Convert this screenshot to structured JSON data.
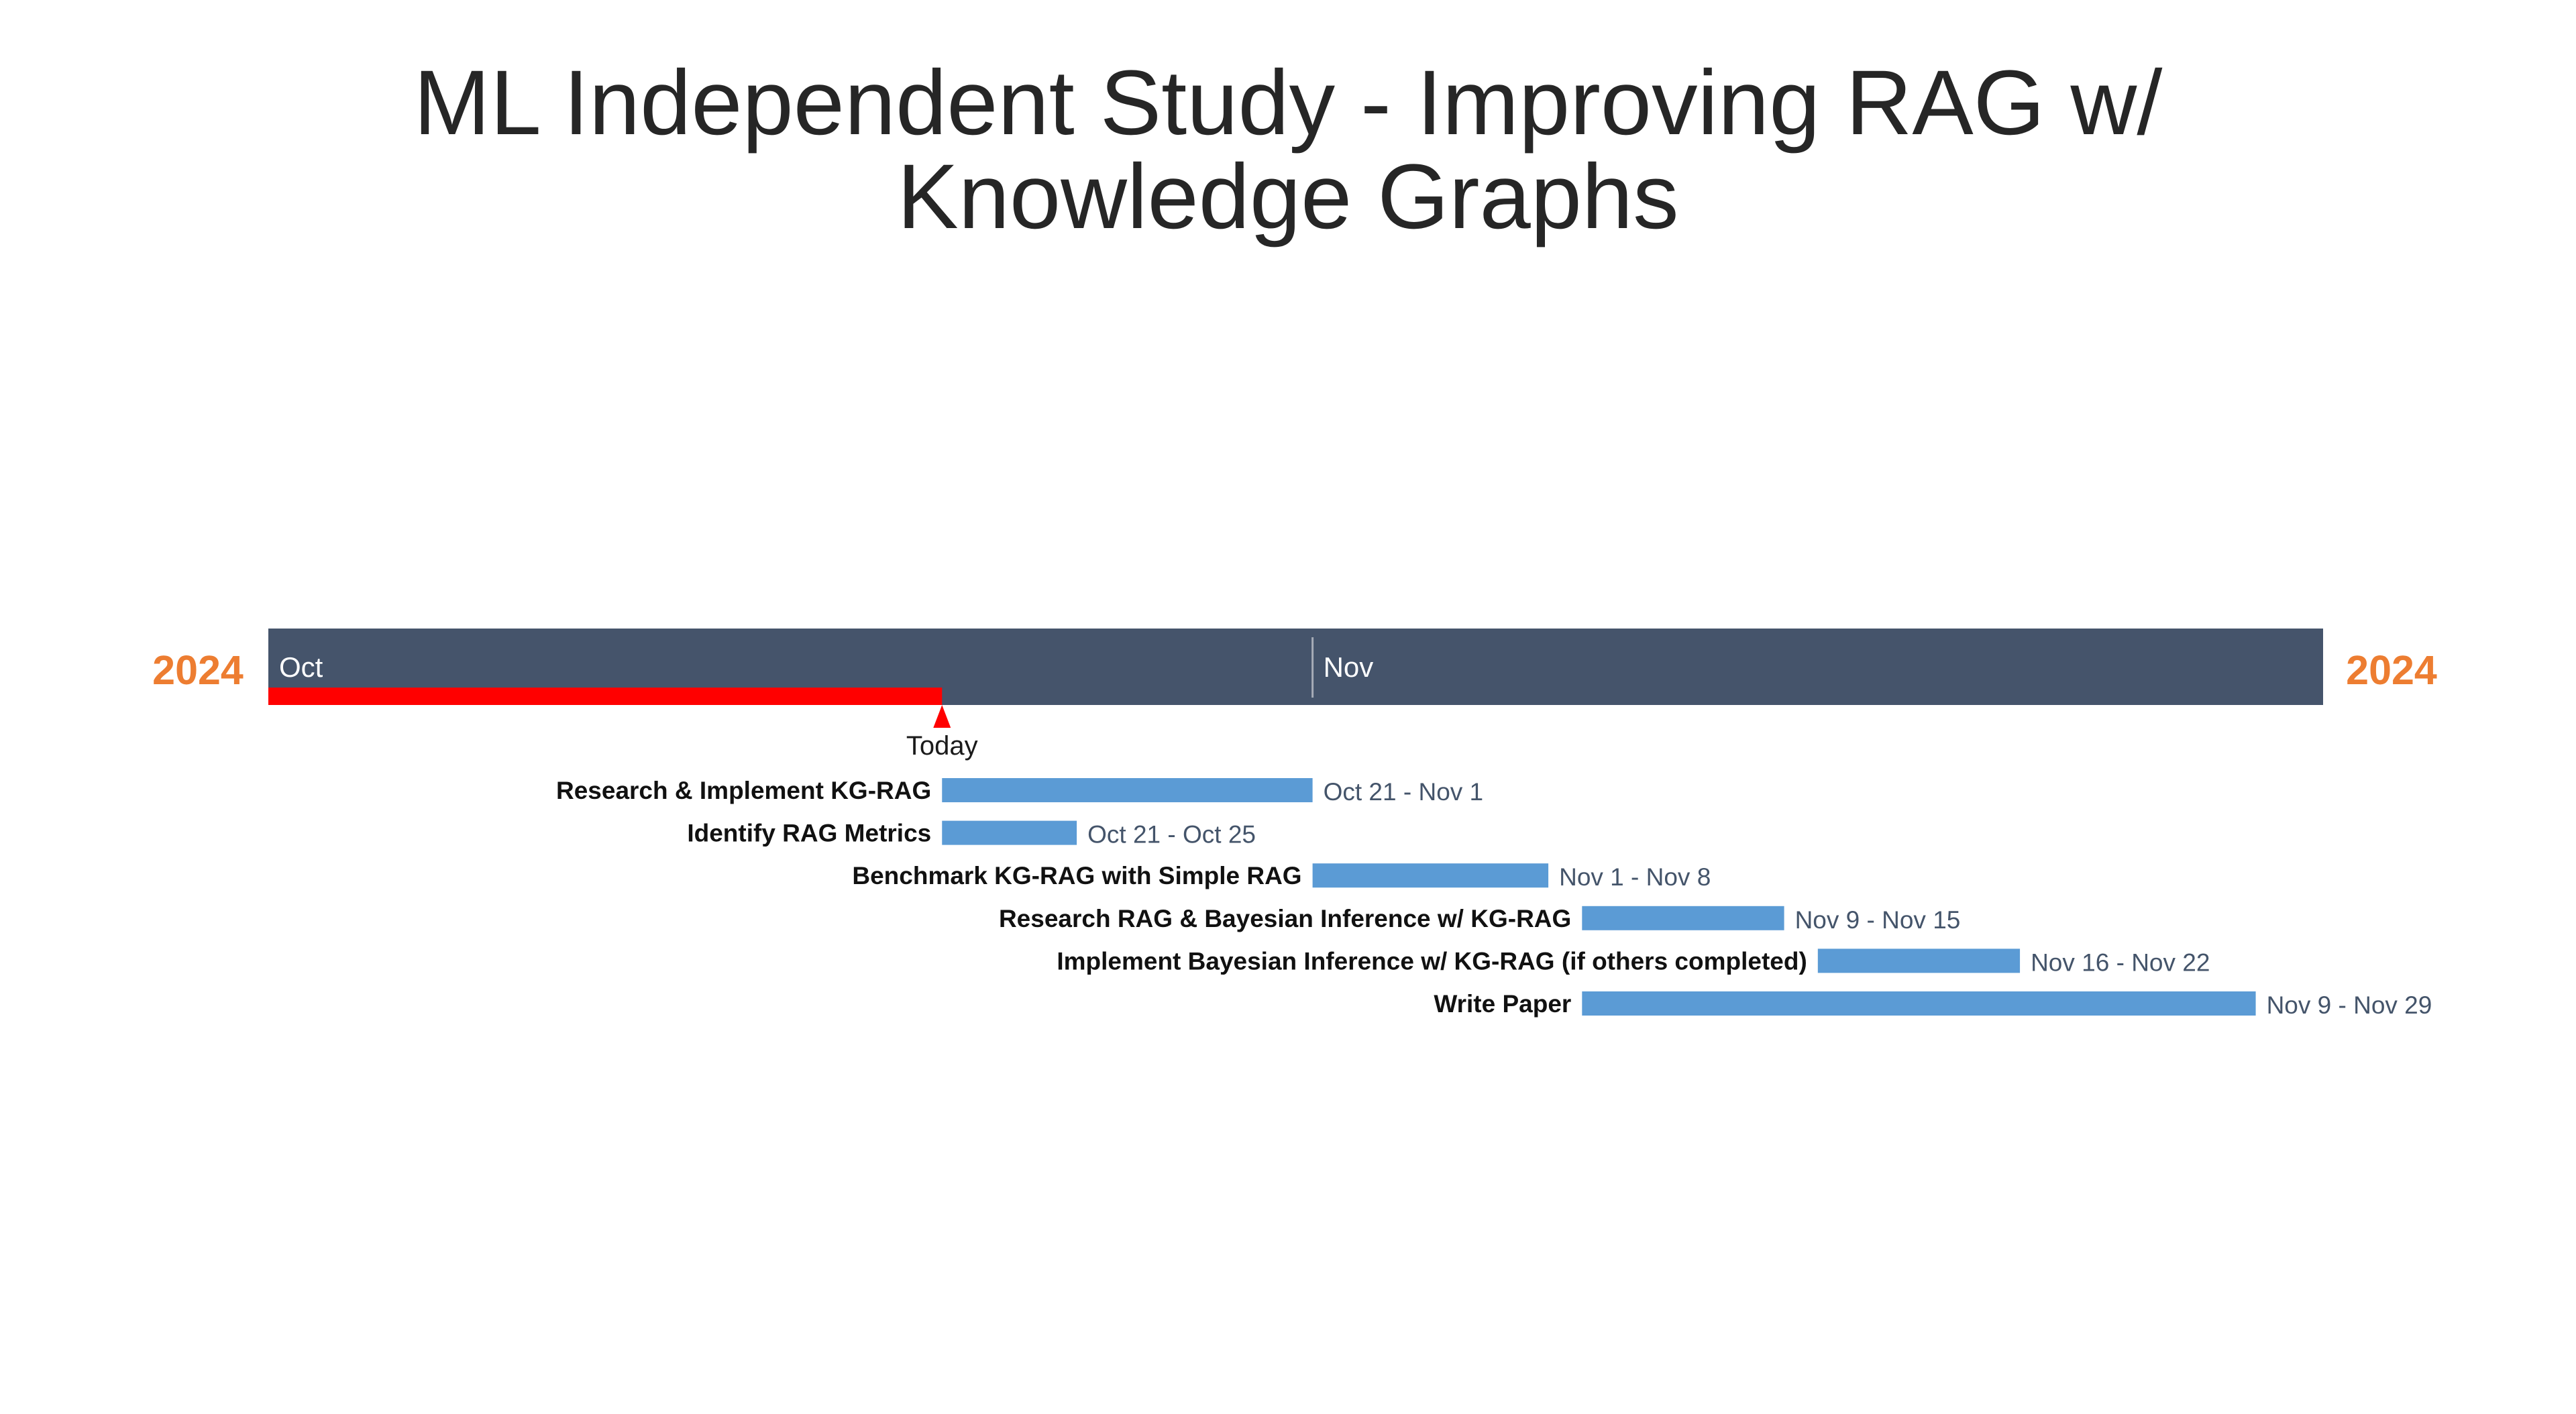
{
  "chart_data": {
    "type": "gantt",
    "title": "ML Independent Study - Improving RAG w/ Knowledge Graphs",
    "title_lines": [
      "ML Independent Study - Improving RAG w/",
      "Knowledge Graphs"
    ],
    "year_left": "2024",
    "year_right": "2024",
    "timeline_start": "2024-10-01",
    "timeline_end": "2024-12-01",
    "months": [
      {
        "label": "Oct",
        "start": "2024-10-01"
      },
      {
        "label": "Nov",
        "start": "2024-11-01"
      }
    ],
    "today": {
      "label": "Today",
      "date": "2024-10-21"
    },
    "tasks": [
      {
        "name": "Research & Implement KG-RAG",
        "start": "2024-10-21",
        "end": "2024-11-01",
        "range_label": "Oct 21 - Nov 1"
      },
      {
        "name": "Identify RAG Metrics",
        "start": "2024-10-21",
        "end": "2024-10-25",
        "range_label": "Oct 21 - Oct 25"
      },
      {
        "name": "Benchmark KG-RAG with Simple RAG",
        "start": "2024-11-01",
        "end": "2024-11-08",
        "range_label": "Nov 1 - Nov 8"
      },
      {
        "name": "Research RAG & Bayesian Inference w/ KG-RAG",
        "start": "2024-11-09",
        "end": "2024-11-15",
        "range_label": "Nov 9 - Nov 15"
      },
      {
        "name": "Implement Bayesian Inference w/ KG-RAG (if others completed)",
        "start": "2024-11-16",
        "end": "2024-11-22",
        "range_label": "Nov 16 - Nov 22"
      },
      {
        "name": "Write Paper",
        "start": "2024-11-09",
        "end": "2024-11-29",
        "range_label": "Nov 9 - Nov 29"
      }
    ],
    "colors": {
      "timeline_band": "#45546b",
      "year_text": "#ed7d31",
      "today_marker": "#ff0000",
      "task_bar": "#5b9bd5",
      "month_divider": "#a6acb7"
    }
  }
}
